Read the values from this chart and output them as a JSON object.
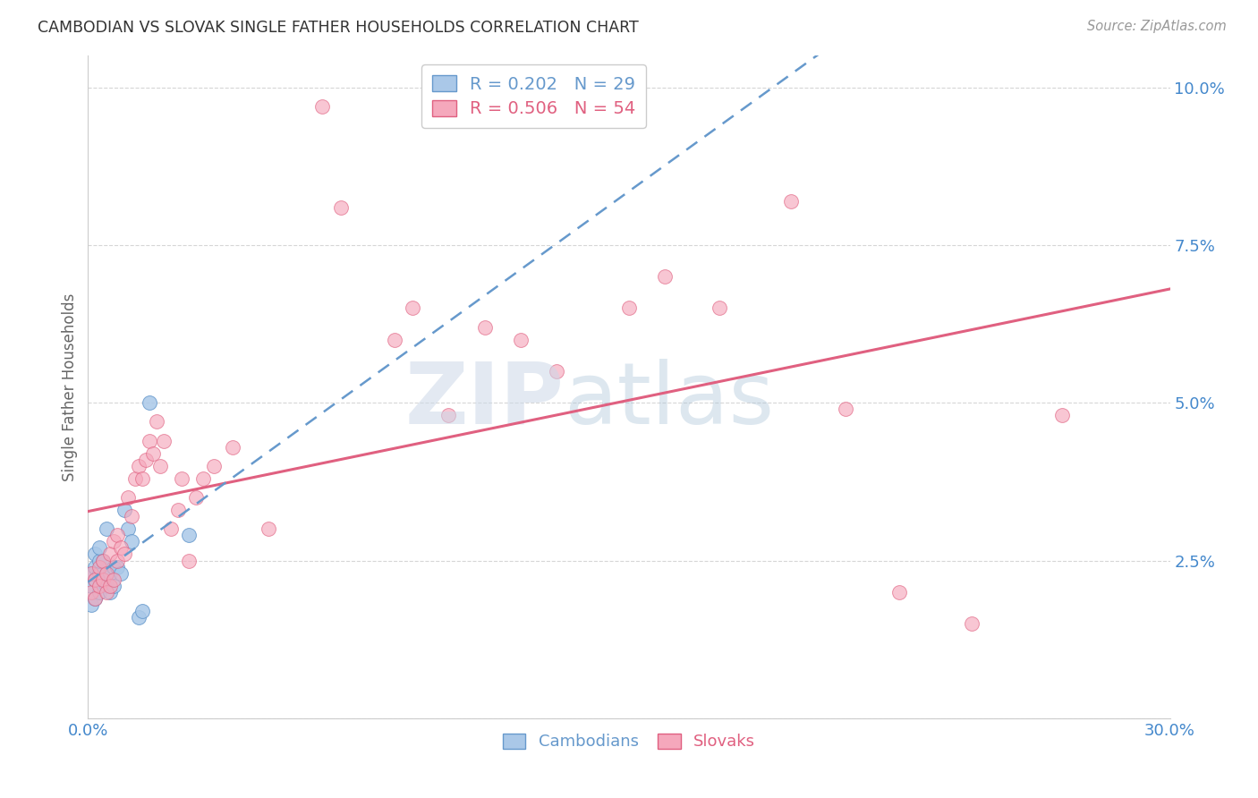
{
  "title": "CAMBODIAN VS SLOVAK SINGLE FATHER HOUSEHOLDS CORRELATION CHART",
  "source": "Source: ZipAtlas.com",
  "ylabel": "Single Father Households",
  "xlim": [
    0,
    0.3
  ],
  "ylim": [
    0.0,
    0.105
  ],
  "legend_r_cambodian": "0.202",
  "legend_n_cambodian": "29",
  "legend_r_slovak": "0.506",
  "legend_n_slovak": "54",
  "cambodian_color": "#aac8e8",
  "slovak_color": "#f5a8bc",
  "trend_cambodian_color": "#6699cc",
  "trend_slovak_color": "#e06080",
  "grid_color": "#cccccc",
  "tick_color": "#4488cc",
  "cambodian_x": [
    0.001,
    0.001,
    0.001,
    0.002,
    0.002,
    0.002,
    0.002,
    0.003,
    0.003,
    0.003,
    0.003,
    0.004,
    0.004,
    0.005,
    0.005,
    0.005,
    0.006,
    0.006,
    0.007,
    0.007,
    0.008,
    0.009,
    0.01,
    0.011,
    0.012,
    0.014,
    0.015,
    0.017,
    0.028
  ],
  "cambodian_y": [
    0.018,
    0.021,
    0.023,
    0.019,
    0.022,
    0.024,
    0.026,
    0.02,
    0.023,
    0.025,
    0.027,
    0.022,
    0.025,
    0.021,
    0.023,
    0.03,
    0.02,
    0.023,
    0.021,
    0.024,
    0.024,
    0.023,
    0.033,
    0.03,
    0.028,
    0.016,
    0.017,
    0.05,
    0.029
  ],
  "slovak_x": [
    0.001,
    0.001,
    0.002,
    0.002,
    0.003,
    0.003,
    0.004,
    0.004,
    0.005,
    0.005,
    0.006,
    0.006,
    0.007,
    0.007,
    0.008,
    0.008,
    0.009,
    0.01,
    0.011,
    0.012,
    0.013,
    0.014,
    0.015,
    0.016,
    0.017,
    0.018,
    0.019,
    0.02,
    0.021,
    0.023,
    0.025,
    0.026,
    0.028,
    0.03,
    0.032,
    0.035,
    0.04,
    0.05,
    0.065,
    0.07,
    0.085,
    0.09,
    0.1,
    0.11,
    0.12,
    0.13,
    0.15,
    0.16,
    0.175,
    0.195,
    0.21,
    0.225,
    0.245,
    0.27
  ],
  "slovak_y": [
    0.02,
    0.023,
    0.019,
    0.022,
    0.021,
    0.024,
    0.022,
    0.025,
    0.02,
    0.023,
    0.021,
    0.026,
    0.022,
    0.028,
    0.025,
    0.029,
    0.027,
    0.026,
    0.035,
    0.032,
    0.038,
    0.04,
    0.038,
    0.041,
    0.044,
    0.042,
    0.047,
    0.04,
    0.044,
    0.03,
    0.033,
    0.038,
    0.025,
    0.035,
    0.038,
    0.04,
    0.043,
    0.03,
    0.097,
    0.081,
    0.06,
    0.065,
    0.048,
    0.062,
    0.06,
    0.055,
    0.065,
    0.07,
    0.065,
    0.082,
    0.049,
    0.02,
    0.015,
    0.048
  ],
  "trend_slovak_start_x": 0.0,
  "trend_slovak_end_x": 0.3,
  "trend_cambodian_start_x": 0.0,
  "trend_cambodian_end_x": 0.3
}
